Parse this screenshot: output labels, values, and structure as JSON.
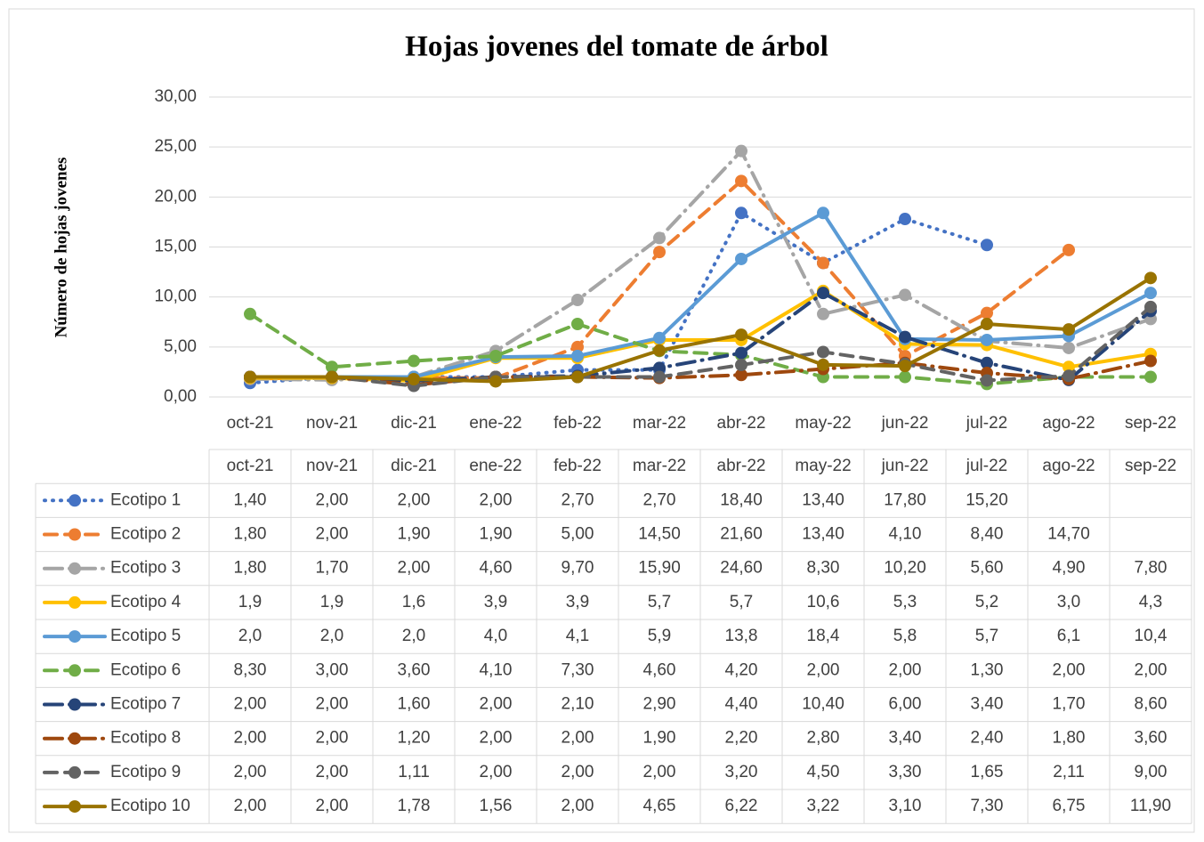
{
  "chart_data": {
    "type": "line",
    "title": "Hojas jovenes del tomate de árbol",
    "y_label": "Número de hojas jovenes",
    "categories": [
      "oct-21",
      "nov-21",
      "dic-21",
      "ene-22",
      "feb-22",
      "mar-22",
      "abr-22",
      "may-22",
      "jun-22",
      "jul-22",
      "ago-22",
      "sep-22"
    ],
    "ylim": [
      0,
      30
    ],
    "yticks": [
      {
        "value": 0,
        "label": "0,00"
      },
      {
        "value": 5,
        "label": "5,00"
      },
      {
        "value": 10,
        "label": "10,00"
      },
      {
        "value": 15,
        "label": "15,00"
      },
      {
        "value": 20,
        "label": "20,00"
      },
      {
        "value": 25,
        "label": "25,00"
      },
      {
        "value": 30,
        "label": "30,00"
      }
    ],
    "grid": true,
    "series": [
      {
        "name": "Ecotipo 1",
        "color": "#4472c4",
        "dash": "dot",
        "values": [
          1.4,
          2,
          2,
          2,
          2.7,
          2.7,
          18.4,
          13.4,
          17.8,
          15.2,
          null,
          null
        ],
        "value_labels": [
          "1,40",
          "2,00",
          "2,00",
          "2,00",
          "2,70",
          "2,70",
          "18,40",
          "13,40",
          "17,80",
          "15,20",
          null,
          null
        ]
      },
      {
        "name": "Ecotipo 2",
        "color": "#ed7d31",
        "dash": "dash",
        "values": [
          1.8,
          2,
          1.9,
          1.9,
          5,
          14.5,
          21.6,
          13.4,
          4.1,
          8.4,
          14.7,
          null
        ],
        "value_labels": [
          "1,80",
          "2,00",
          "1,90",
          "1,90",
          "5,00",
          "14,50",
          "21,60",
          "13,40",
          "4,10",
          "8,40",
          "14,70",
          null
        ]
      },
      {
        "name": "Ecotipo 3",
        "color": "#a5a5a5",
        "dash": "longdashdot",
        "values": [
          1.8,
          1.7,
          2,
          4.6,
          9.7,
          15.9,
          24.6,
          8.3,
          10.2,
          5.6,
          4.9,
          7.8
        ],
        "value_labels": [
          "1,80",
          "1,70",
          "2,00",
          "4,60",
          "9,70",
          "15,90",
          "24,60",
          "8,30",
          "10,20",
          "5,60",
          "4,90",
          "7,80"
        ]
      },
      {
        "name": "Ecotipo 4",
        "color": "#ffc000",
        "dash": "solid",
        "values": [
          1.9,
          1.9,
          1.6,
          3.9,
          3.9,
          5.7,
          5.7,
          10.6,
          5.3,
          5.2,
          3.0,
          4.3
        ],
        "value_labels": [
          "1,9",
          "1,9",
          "1,6",
          "3,9",
          "3,9",
          "5,7",
          "5,7",
          "10,6",
          "5,3",
          "5,2",
          "3,0",
          "4,3"
        ]
      },
      {
        "name": "Ecotipo 5",
        "color": "#5b9bd5",
        "dash": "solid",
        "values": [
          2,
          2,
          2,
          4,
          4.1,
          5.9,
          13.8,
          18.4,
          5.8,
          5.7,
          6.1,
          10.4
        ],
        "value_labels": [
          "2,0",
          "2,0",
          "2,0",
          "4,0",
          "4,1",
          "5,9",
          "13,8",
          "18,4",
          "5,8",
          "5,7",
          "6,1",
          "10,4"
        ]
      },
      {
        "name": "Ecotipo 6",
        "color": "#70ad47",
        "dash": "dash",
        "values": [
          8.3,
          3,
          3.6,
          4.1,
          7.3,
          4.6,
          4.2,
          2,
          2,
          1.3,
          2,
          2
        ],
        "value_labels": [
          "8,30",
          "3,00",
          "3,60",
          "4,10",
          "7,30",
          "4,60",
          "4,20",
          "2,00",
          "2,00",
          "1,30",
          "2,00",
          "2,00"
        ]
      },
      {
        "name": "Ecotipo 7",
        "color": "#264478",
        "dash": "longdashdot",
        "values": [
          2,
          2,
          1.6,
          2,
          2.1,
          2.9,
          4.4,
          10.4,
          6,
          3.4,
          1.7,
          8.6
        ],
        "value_labels": [
          "2,00",
          "2,00",
          "1,60",
          "2,00",
          "2,10",
          "2,90",
          "4,40",
          "10,40",
          "6,00",
          "3,40",
          "1,70",
          "8,60"
        ]
      },
      {
        "name": "Ecotipo 8",
        "color": "#9e480e",
        "dash": "longdashdot",
        "values": [
          2,
          2,
          1.2,
          2,
          2,
          1.9,
          2.2,
          2.8,
          3.4,
          2.4,
          1.8,
          3.6
        ],
        "value_labels": [
          "2,00",
          "2,00",
          "1,20",
          "2,00",
          "2,00",
          "1,90",
          "2,20",
          "2,80",
          "3,40",
          "2,40",
          "1,80",
          "3,60"
        ]
      },
      {
        "name": "Ecotipo 9",
        "color": "#636363",
        "dash": "dash",
        "values": [
          2,
          2,
          1.11,
          2,
          2,
          2,
          3.2,
          4.5,
          3.3,
          1.65,
          2.11,
          9
        ],
        "value_labels": [
          "2,00",
          "2,00",
          "1,11",
          "2,00",
          "2,00",
          "2,00",
          "3,20",
          "4,50",
          "3,30",
          "1,65",
          "2,11",
          "9,00"
        ]
      },
      {
        "name": "Ecotipo 10",
        "color": "#997300",
        "dash": "solid",
        "values": [
          2,
          2,
          1.78,
          1.56,
          2,
          4.65,
          6.22,
          3.22,
          3.1,
          7.3,
          6.75,
          11.9
        ],
        "value_labels": [
          "2,00",
          "2,00",
          "1,78",
          "1,56",
          "2,00",
          "4,65",
          "6,22",
          "3,22",
          "3,10",
          "7,30",
          "6,75",
          "11,90"
        ]
      }
    ]
  }
}
